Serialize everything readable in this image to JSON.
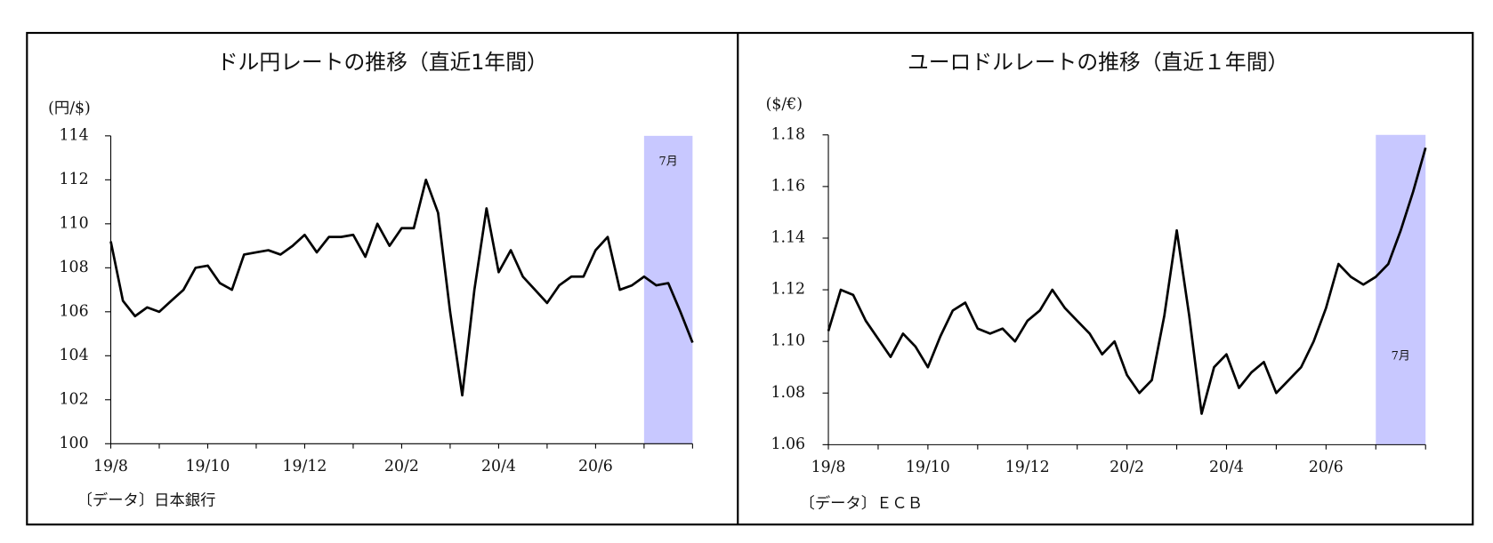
{
  "chart_data": [
    {
      "type": "line",
      "title": "ドル円レートの推移（直近1年間）",
      "y_label": "(円/$)",
      "source": "〔データ〕日本銀行",
      "annotation": "7月",
      "color": "#000000",
      "categories": [
        "19/8",
        null,
        null,
        null,
        null,
        null,
        null,
        null,
        "19/10",
        null,
        null,
        null,
        null,
        null,
        null,
        null,
        "19/12",
        null,
        null,
        null,
        null,
        null,
        null,
        null,
        "20/2",
        null,
        null,
        null,
        null,
        null,
        null,
        null,
        "20/4",
        null,
        null,
        null,
        null,
        null,
        null,
        null,
        "20/6",
        null,
        null,
        null,
        null,
        null,
        null,
        null,
        null
      ],
      "values": [
        109.2,
        106.5,
        105.8,
        106.2,
        106.0,
        106.5,
        107.0,
        108.0,
        108.1,
        107.3,
        107.0,
        108.6,
        108.7,
        108.8,
        108.6,
        109.0,
        109.5,
        108.7,
        109.4,
        109.4,
        109.5,
        108.5,
        110.0,
        109.0,
        109.8,
        109.8,
        112.0,
        110.5,
        106.0,
        102.2,
        107.0,
        110.7,
        107.8,
        108.8,
        107.6,
        107.0,
        106.4,
        107.2,
        107.6,
        107.6,
        108.8,
        109.4,
        107.0,
        107.2,
        107.6,
        107.2,
        107.3,
        106.0,
        104.6
      ],
      "ylim": [
        100,
        114
      ],
      "yticks": [
        100,
        102,
        104,
        106,
        108,
        110,
        112,
        114
      ]
    },
    {
      "type": "line",
      "title": "ユーロドルレートの推移（直近１年間）",
      "y_label": "($/€)",
      "source": "〔データ〕ＥＣＢ",
      "annotation": "7月",
      "color": "#000000",
      "categories": [
        "19/8",
        null,
        null,
        null,
        null,
        null,
        null,
        null,
        "19/10",
        null,
        null,
        null,
        null,
        null,
        null,
        null,
        "19/12",
        null,
        null,
        null,
        null,
        null,
        null,
        null,
        "20/2",
        null,
        null,
        null,
        null,
        null,
        null,
        null,
        "20/4",
        null,
        null,
        null,
        null,
        null,
        null,
        null,
        "20/6",
        null,
        null,
        null,
        null,
        null,
        null,
        null,
        null
      ],
      "values": [
        1.104,
        1.12,
        1.118,
        1.108,
        1.101,
        1.094,
        1.103,
        1.098,
        1.09,
        1.102,
        1.112,
        1.115,
        1.105,
        1.103,
        1.105,
        1.1,
        1.108,
        1.112,
        1.12,
        1.113,
        1.108,
        1.103,
        1.095,
        1.1,
        1.087,
        1.08,
        1.085,
        1.11,
        1.143,
        1.11,
        1.072,
        1.09,
        1.095,
        1.082,
        1.088,
        1.092,
        1.08,
        1.085,
        1.09,
        1.1,
        1.113,
        1.13,
        1.125,
        1.122,
        1.125,
        1.13,
        1.143,
        1.158,
        1.175
      ],
      "ylim": [
        1.06,
        1.18
      ],
      "yticks": [
        1.06,
        1.08,
        {
          "value": 1.1,
          "label": "1.10"
        },
        1.12,
        1.14,
        1.16,
        1.18
      ]
    }
  ]
}
